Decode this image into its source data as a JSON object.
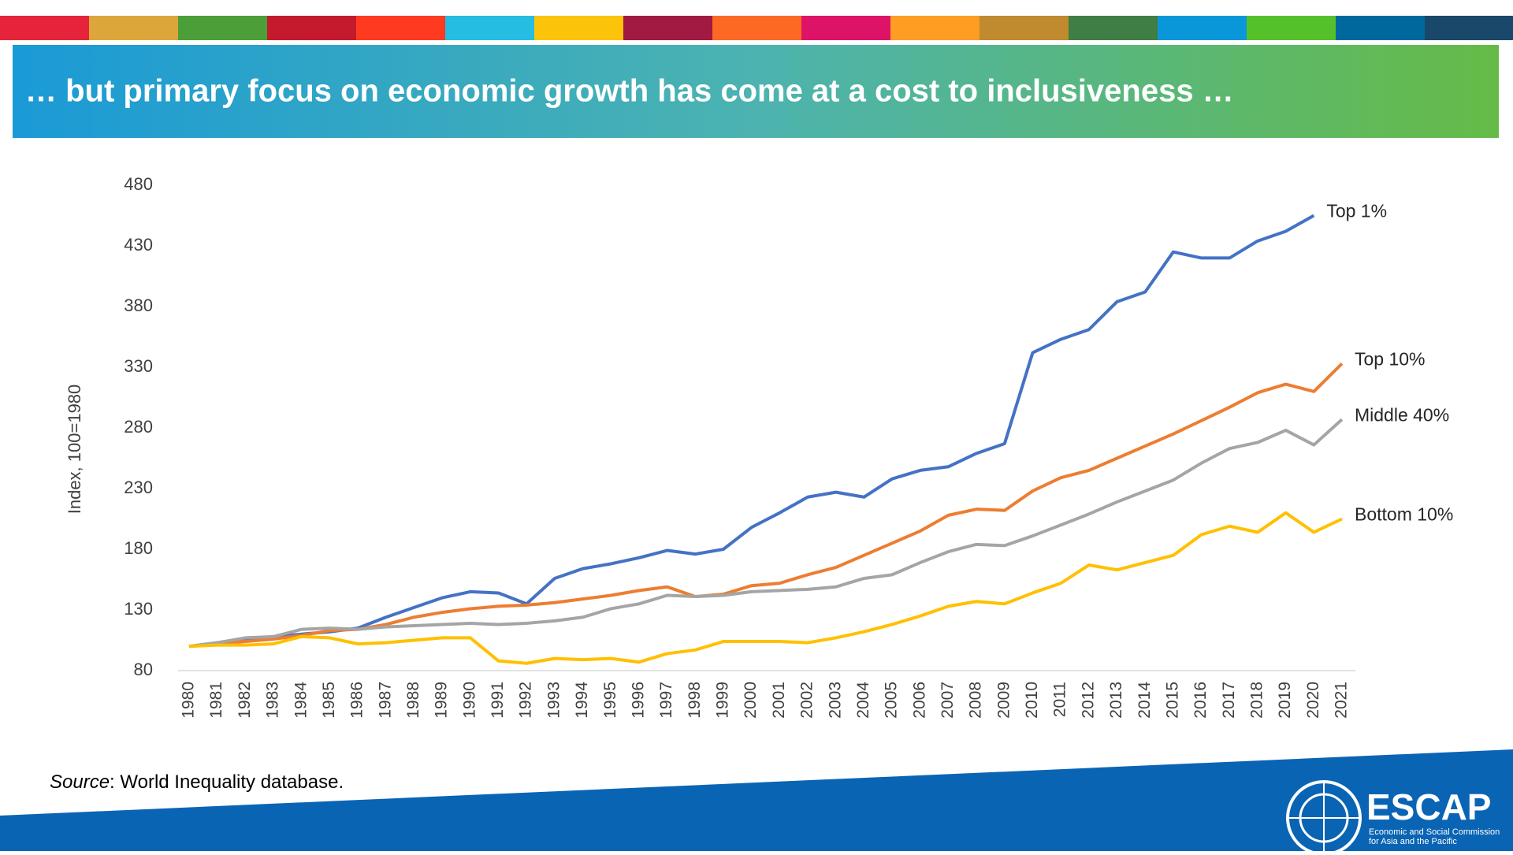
{
  "chart_data": {
    "type": "line",
    "title": "… but primary focus on economic growth has come at a cost to inclusiveness …",
    "y_label": "Index, 100=1980",
    "source_label": "Source",
    "source_text": ": World Inequality database.",
    "logo_text": "ESCAP",
    "logo_subtitle_1": "Economic and Social Commission",
    "logo_subtitle_2": "for Asia and the Pacific",
    "categories": [
      "1980",
      "1981",
      "1982",
      "1983",
      "1984",
      "1985",
      "1986",
      "1987",
      "1988",
      "1989",
      "1990",
      "1991",
      "1992",
      "1993",
      "1994",
      "1995",
      "1996",
      "1997",
      "1998",
      "1999",
      "2000",
      "2001",
      "2002",
      "2003",
      "2004",
      "2005",
      "2006",
      "2007",
      "2008",
      "2009",
      "2010",
      "2011",
      "2012",
      "2013",
      "2014",
      "2015",
      "2016",
      "2017",
      "2018",
      "2019",
      "2020",
      "2021"
    ],
    "ylim": [
      80,
      480
    ],
    "yticks": [
      80,
      130,
      180,
      230,
      280,
      330,
      380,
      430,
      480
    ],
    "grid": false,
    "series": [
      {
        "name": "Top 1%",
        "color": "#4472c4",
        "values": [
          100,
          103,
          106,
          108,
          110,
          112,
          115,
          124,
          132,
          140,
          145,
          144,
          135,
          156,
          164,
          168,
          173,
          179,
          176,
          180,
          198,
          210,
          223,
          227,
          223,
          238,
          245,
          248,
          259,
          267,
          342,
          353,
          361,
          384,
          392,
          425,
          420,
          420,
          434,
          442,
          455,
          null
        ]
      },
      {
        "name": "Top 10%",
        "color": "#ed7d31",
        "values": [
          100,
          102,
          104,
          106,
          109,
          113,
          114,
          118,
          124,
          128,
          131,
          133,
          134,
          136,
          139,
          142,
          146,
          149,
          141,
          143,
          150,
          152,
          159,
          165,
          175,
          185,
          195,
          208,
          213,
          212,
          228,
          239,
          245,
          255,
          265,
          275,
          286,
          297,
          309,
          316,
          310,
          333
        ]
      },
      {
        "name": "Middle 40%",
        "color": "#a5a5a5",
        "values": [
          100,
          103,
          107,
          108,
          114,
          115,
          114,
          116,
          117,
          118,
          119,
          118,
          119,
          121,
          124,
          131,
          135,
          142,
          141,
          142,
          145,
          146,
          147,
          149,
          156,
          159,
          169,
          178,
          184,
          183,
          191,
          200,
          209,
          219,
          228,
          237,
          251,
          263,
          268,
          278,
          266,
          287
        ]
      },
      {
        "name": "Bottom 10%",
        "color": "#ffc000",
        "values": [
          100,
          101,
          101,
          102,
          108,
          107,
          102,
          103,
          105,
          107,
          107,
          88,
          86,
          90,
          89,
          90,
          87,
          94,
          97,
          104,
          104,
          104,
          103,
          107,
          112,
          118,
          125,
          133,
          137,
          135,
          144,
          152,
          167,
          163,
          169,
          175,
          192,
          199,
          194,
          210,
          194,
          205
        ]
      }
    ]
  }
}
